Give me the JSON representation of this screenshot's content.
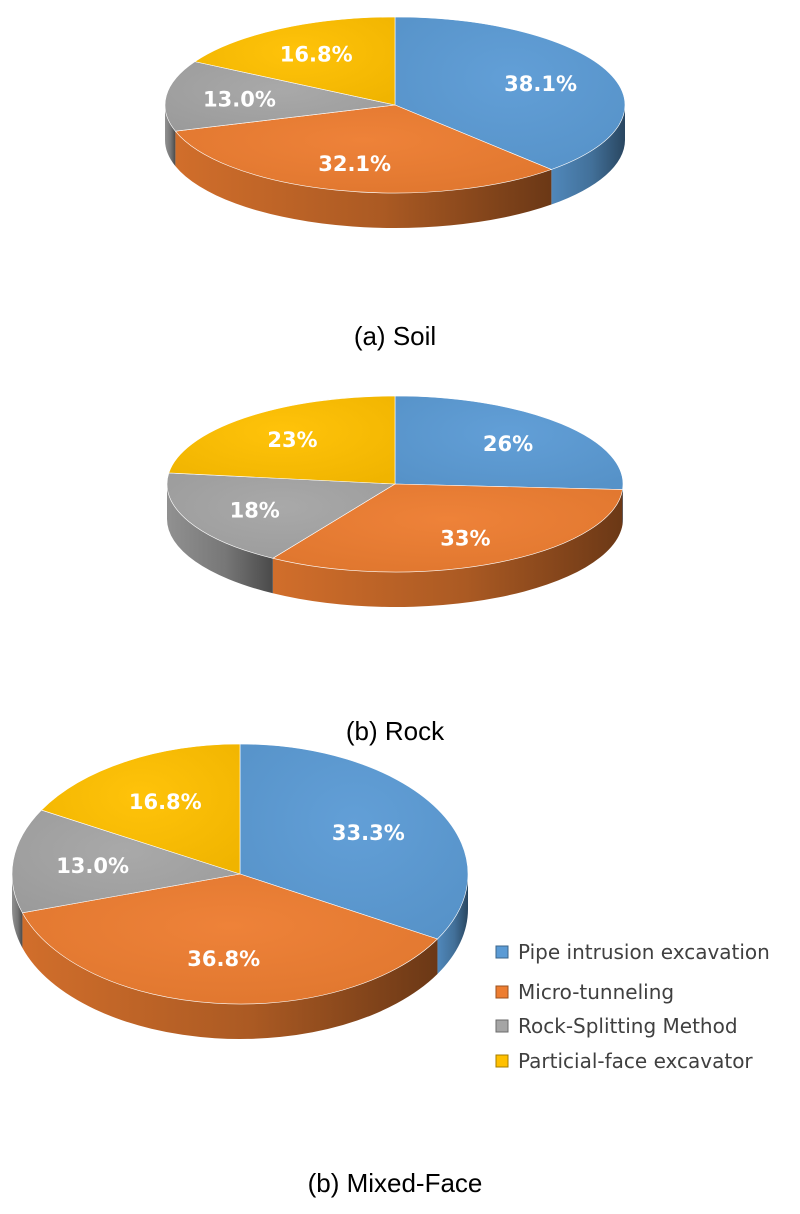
{
  "chart_data": [
    {
      "type": "pie",
      "caption": "(a)  Soil",
      "categories": [
        "Pipe intrusion excavation",
        "Micro-tunneling",
        "Rock-Splitting Method",
        "Particial-face excavator"
      ],
      "values": [
        38.1,
        32.1,
        13.0,
        16.8
      ],
      "labels": [
        "38.1%",
        "32.1%",
        "13.0%",
        "16.8%"
      ]
    },
    {
      "type": "pie",
      "caption": "(b)  Rock",
      "categories": [
        "Pipe intrusion excavation",
        "Micro-tunneling",
        "Rock-Splitting Method",
        "Particial-face excavator"
      ],
      "values": [
        26,
        33,
        18,
        23
      ],
      "labels": [
        "26%",
        "33%",
        "18%",
        "23%"
      ]
    },
    {
      "type": "pie",
      "caption": "(b)  Mixed-Face",
      "categories": [
        "Pipe intrusion excavation",
        "Micro-tunneling",
        "Rock-Splitting Method",
        "Particial-face excavator"
      ],
      "values": [
        33.3,
        36.8,
        13.0,
        16.8
      ],
      "labels": [
        "33.3%",
        "36.8%",
        "13.0%",
        "16.8%"
      ]
    }
  ],
  "legend": {
    "placement": "right",
    "items": [
      {
        "label": "Pipe intrusion excavation",
        "color": "#5b9bd5"
      },
      {
        "label": "Micro-tunneling",
        "color": "#ed7d31"
      },
      {
        "label": "Rock-Splitting Method",
        "color": "#a5a5a5"
      },
      {
        "label": "Particial-face excavator",
        "color": "#ffc000"
      }
    ]
  }
}
